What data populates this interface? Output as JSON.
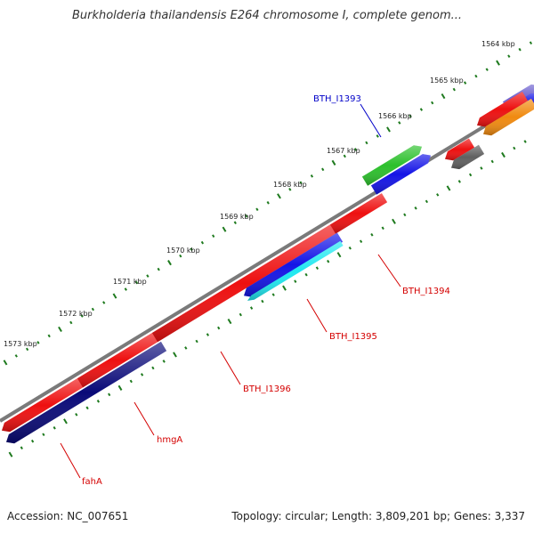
{
  "title": "Burkholderia thailandensis E264 chromosome I, complete genom...",
  "footer": {
    "accession": "Accession: NC_007651",
    "summary": "Topology: circular; Length: 3,809,201 bp; Genes: 3,337"
  },
  "colors": {
    "backbone": "#7a7a7a",
    "tick": "#1e7a1e",
    "forward_label": "#0000c8",
    "reverse_label": "#d40000",
    "label_line_forward": "#0000c8",
    "label_line_reverse": "#d40000"
  },
  "ticks": [
    {
      "label": "1564 kbp"
    },
    {
      "label": "1565 kbp"
    },
    {
      "label": "1566 kbp"
    },
    {
      "label": "1567 kbp"
    },
    {
      "label": "1568 kbp"
    },
    {
      "label": "1569 kbp"
    },
    {
      "label": "1570 kbp"
    },
    {
      "label": "1571 kbp"
    },
    {
      "label": "1572 kbp"
    },
    {
      "label": "1573 kbp"
    }
  ],
  "gene_labels": [
    {
      "text": "BTH_I1393",
      "strand": "forward"
    },
    {
      "text": "BTH_I1394",
      "strand": "reverse"
    },
    {
      "text": "BTH_I1395",
      "strand": "reverse"
    },
    {
      "text": "BTH_I1396",
      "strand": "reverse"
    },
    {
      "text": "hmgA",
      "strand": "reverse"
    },
    {
      "text": "fahA",
      "strand": "reverse"
    }
  ],
  "features": [
    {
      "name": "purple-gene",
      "color": "#7064d0"
    },
    {
      "name": "blue-gene",
      "color": "#1414e6"
    },
    {
      "name": "red-gene",
      "color": "#ee1010"
    },
    {
      "name": "orange-gene",
      "color": "#f08a10"
    },
    {
      "name": "green-gene",
      "color": "#2cc02c"
    },
    {
      "name": "gray-gene",
      "color": "#606060"
    },
    {
      "name": "cyan-gene",
      "color": "#20e8f0"
    },
    {
      "name": "navy-gene",
      "color": "#0a0a78"
    }
  ]
}
